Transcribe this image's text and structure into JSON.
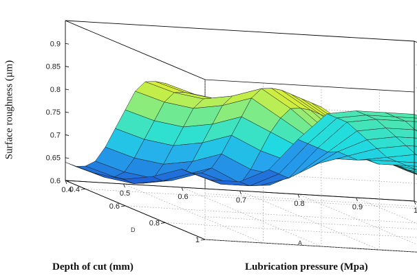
{
  "chart_data": {
    "type": "surface",
    "title": "",
    "zlabel": "Surface roughness (µm)",
    "x_axis": {
      "letter": "A",
      "label": "Lubrication pressure (Mpa)",
      "range": [
        0.4,
        1.0
      ],
      "ticks": [
        "0.4",
        "0.5",
        "0.6",
        "0.7",
        "0.8",
        "0.9",
        "1"
      ]
    },
    "y_axis": {
      "letter": "D",
      "label": "Depth of cut (mm)",
      "range": [
        0.3,
        1.0
      ],
      "ticks": [
        "0.4",
        "0.6",
        "0.8",
        "1"
      ]
    },
    "z_axis": {
      "range": [
        0.6,
        0.95
      ],
      "ticks": [
        "0.6",
        "0.65",
        "0.7",
        "0.75",
        "0.8",
        "0.85",
        "0.9"
      ]
    },
    "grid": true,
    "colormap": "jet",
    "lubrication_pressure": [
      0.4,
      0.45,
      0.5,
      0.55,
      0.6,
      0.65,
      0.7,
      0.75,
      0.8,
      0.85,
      0.9,
      0.95,
      1.0
    ],
    "depth_of_cut": [
      0.3,
      0.35,
      0.4,
      0.45,
      0.5,
      0.55,
      0.6,
      0.65,
      0.7,
      0.75,
      0.8,
      0.85,
      0.9,
      0.95,
      1.0
    ],
    "surface_roughness_rows": [
      [
        0.64,
        0.62,
        0.61,
        0.62,
        0.64,
        0.62,
        0.62,
        0.65,
        0.72,
        0.78,
        0.79,
        0.79,
        0.79
      ],
      [
        0.64,
        0.62,
        0.61,
        0.62,
        0.64,
        0.62,
        0.62,
        0.65,
        0.72,
        0.78,
        0.79,
        0.79,
        0.79
      ],
      [
        0.65,
        0.63,
        0.62,
        0.63,
        0.65,
        0.63,
        0.63,
        0.65,
        0.72,
        0.78,
        0.79,
        0.79,
        0.79
      ],
      [
        0.67,
        0.65,
        0.64,
        0.65,
        0.67,
        0.64,
        0.64,
        0.67,
        0.72,
        0.77,
        0.78,
        0.78,
        0.78
      ],
      [
        0.71,
        0.69,
        0.68,
        0.69,
        0.71,
        0.68,
        0.67,
        0.69,
        0.73,
        0.76,
        0.77,
        0.77,
        0.77
      ],
      [
        0.76,
        0.74,
        0.73,
        0.74,
        0.76,
        0.73,
        0.71,
        0.71,
        0.73,
        0.75,
        0.76,
        0.76,
        0.76
      ],
      [
        0.81,
        0.79,
        0.78,
        0.79,
        0.81,
        0.78,
        0.75,
        0.73,
        0.73,
        0.74,
        0.75,
        0.75,
        0.75
      ],
      [
        0.86,
        0.84,
        0.83,
        0.84,
        0.86,
        0.82,
        0.78,
        0.75,
        0.74,
        0.74,
        0.74,
        0.74,
        0.74
      ],
      [
        0.89,
        0.87,
        0.86,
        0.87,
        0.89,
        0.85,
        0.8,
        0.76,
        0.74,
        0.74,
        0.74,
        0.74,
        0.74
      ],
      [
        0.9,
        0.88,
        0.87,
        0.88,
        0.9,
        0.86,
        0.81,
        0.77,
        0.75,
        0.74,
        0.74,
        0.74,
        0.74
      ],
      [
        0.905,
        0.885,
        0.875,
        0.885,
        0.905,
        0.865,
        0.815,
        0.775,
        0.755,
        0.745,
        0.745,
        0.745,
        0.745
      ],
      [
        0.905,
        0.885,
        0.875,
        0.885,
        0.905,
        0.865,
        0.815,
        0.775,
        0.755,
        0.745,
        0.745,
        0.745,
        0.745
      ],
      [
        0.905,
        0.885,
        0.875,
        0.885,
        0.905,
        0.865,
        0.815,
        0.775,
        0.755,
        0.745,
        0.745,
        0.745,
        0.745
      ],
      [
        0.905,
        0.885,
        0.875,
        0.885,
        0.905,
        0.865,
        0.815,
        0.775,
        0.755,
        0.745,
        0.745,
        0.745,
        0.745
      ],
      [
        0.905,
        0.885,
        0.875,
        0.885,
        0.905,
        0.865,
        0.815,
        0.775,
        0.755,
        0.745,
        0.745,
        0.745,
        0.745
      ]
    ]
  }
}
